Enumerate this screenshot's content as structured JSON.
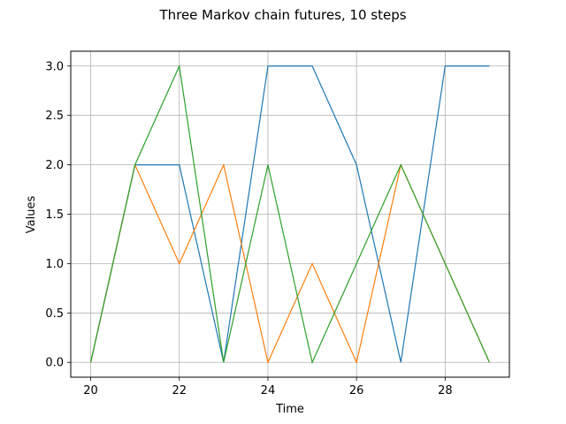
{
  "chart_data": {
    "type": "line",
    "title": "Three Markov chain futures, 10 steps",
    "xlabel": "Time",
    "ylabel": "Values",
    "x": [
      20,
      21,
      22,
      23,
      24,
      25,
      26,
      27,
      28,
      29
    ],
    "xlim": [
      19.55,
      29.45
    ],
    "ylim": [
      -0.15,
      3.15
    ],
    "xticks": [
      20,
      22,
      24,
      26,
      28
    ],
    "yticks": [
      0.0,
      0.5,
      1.0,
      1.5,
      2.0,
      2.5,
      3.0
    ],
    "xtick_labels": [
      "20",
      "22",
      "24",
      "26",
      "28"
    ],
    "ytick_labels": [
      "0.0",
      "0.5",
      "1.0",
      "1.5",
      "2.0",
      "2.5",
      "3.0"
    ],
    "grid": true,
    "series": [
      {
        "values": [
          0,
          2,
          2,
          0,
          3,
          3,
          2,
          0,
          3,
          3
        ],
        "color": "#1f77b4"
      },
      {
        "values": [
          0,
          2,
          1,
          2,
          0,
          1,
          0,
          2,
          1,
          0
        ],
        "color": "#ff7f0e"
      },
      {
        "values": [
          0,
          2,
          3,
          0,
          2,
          0,
          1,
          2,
          1,
          0
        ],
        "color": "#2ca02c"
      }
    ]
  }
}
